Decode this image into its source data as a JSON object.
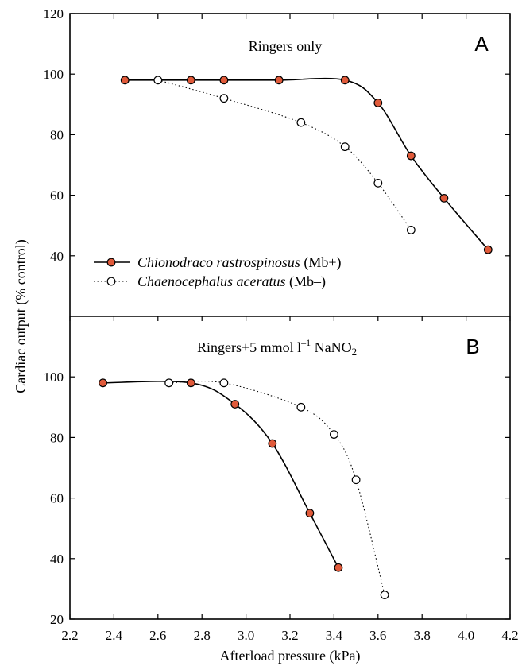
{
  "colors": {
    "mb_plus": "#e05a3a",
    "mb_minus": "#ffffff",
    "axis": "#000000"
  },
  "chart_data": {
    "type": "line",
    "xlabel": "Afterload pressure (kPa)",
    "ylabel": "Cardiac output (% control)",
    "xlim": [
      2.2,
      4.2
    ],
    "x_ticks": [
      "2.2",
      "2.4",
      "2.6",
      "2.8",
      "3.0",
      "3.2",
      "3.4",
      "3.6",
      "3.8",
      "4.0",
      "4.2"
    ],
    "legend": {
      "placement": "lower-left of panel A",
      "entries": [
        {
          "species": "Chionodraco rastrospinosus",
          "suffix": " (Mb+)"
        },
        {
          "species": "Chaenocephalus aceratus",
          "suffix": " (Mb–)"
        }
      ]
    },
    "panels": [
      {
        "letter": "A",
        "title": "Ringers only",
        "ylim": [
          20,
          120
        ],
        "y_ticks": [
          "40",
          "60",
          "80",
          "100",
          "120"
        ],
        "series": [
          {
            "key": "mb_plus",
            "x": [
              2.45,
              2.75,
              2.9,
              3.15,
              3.45,
              3.6,
              3.75,
              3.9,
              4.1
            ],
            "y": [
              98,
              98,
              98,
              98,
              98,
              90.5,
              73,
              59,
              42
            ]
          },
          {
            "key": "mb_minus",
            "x": [
              2.6,
              2.9,
              3.25,
              3.45,
              3.6,
              3.75
            ],
            "y": [
              98,
              92,
              84,
              76,
              64,
              48.5
            ]
          }
        ]
      },
      {
        "letter": "B",
        "title_parts": {
          "main": "Ringers+5 mmol l",
          "sup": "–1",
          "rest": " NaNO",
          "sub": "2"
        },
        "ylim": [
          20,
          120
        ],
        "y_ticks": [
          "20",
          "40",
          "60",
          "80",
          "100"
        ],
        "series": [
          {
            "key": "mb_plus",
            "x": [
              2.35,
              2.75,
              2.95,
              3.12,
              3.29,
              3.42
            ],
            "y": [
              98,
              98,
              91,
              78,
              55,
              37
            ]
          },
          {
            "key": "mb_minus",
            "x": [
              2.65,
              2.9,
              3.25,
              3.4,
              3.5,
              3.63
            ],
            "y": [
              98,
              98,
              90,
              81,
              66,
              28
            ]
          }
        ]
      }
    ]
  }
}
